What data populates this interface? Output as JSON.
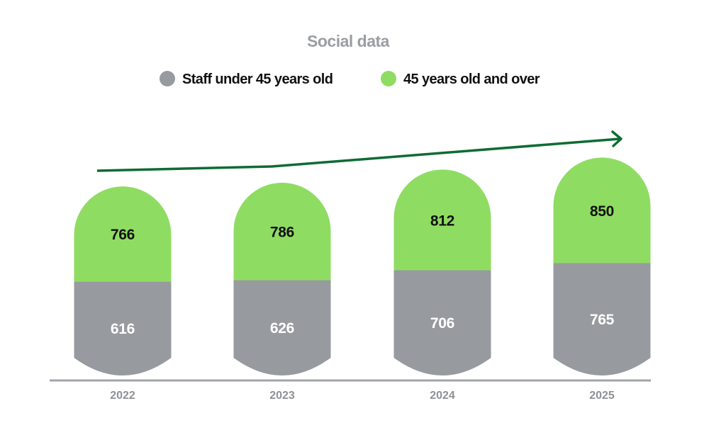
{
  "chart_data": {
    "type": "bar",
    "stacked": true,
    "title": "Social data",
    "categories": [
      "2022",
      "2023",
      "2024",
      "2025"
    ],
    "series": [
      {
        "name": "Staff under 45 years old",
        "color": "#979b9f",
        "values": [
          616,
          626,
          706,
          765
        ]
      },
      {
        "name": "45 years old and over",
        "color": "#8fdc62",
        "values": [
          766,
          786,
          812,
          850
        ]
      }
    ],
    "trend_arrow_color": "#0f6b34",
    "axis_color": "#a0a4a8",
    "legend_position": "top-center"
  }
}
